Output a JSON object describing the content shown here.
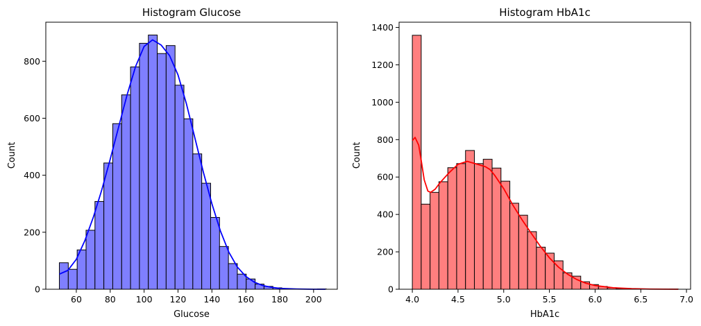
{
  "chart_data": [
    {
      "type": "bar",
      "title": "Histogram Glucose",
      "xlabel": "Glucose",
      "ylabel": "Count",
      "xlim": [
        42,
        214
      ],
      "ylim": [
        0,
        937
      ],
      "xticks": [
        60,
        80,
        100,
        120,
        140,
        160,
        180,
        200
      ],
      "xtick_labels": [
        "60",
        "80",
        "100",
        "120",
        "140",
        "160",
        "180",
        "200"
      ],
      "yticks": [
        0,
        200,
        400,
        600,
        800
      ],
      "ytick_labels": [
        "0",
        "200",
        "400",
        "600",
        "800"
      ],
      "bin_start": 50,
      "bin_width": 5.25,
      "values": [
        93,
        70,
        138,
        207,
        308,
        443,
        581,
        682,
        780,
        863,
        892,
        827,
        855,
        716,
        598,
        475,
        372,
        252,
        150,
        90,
        53,
        36,
        18,
        10,
        5,
        2,
        1,
        1,
        0,
        1
      ],
      "kde": [
        [
          50,
          53
        ],
        [
          55,
          66
        ],
        [
          60,
          105
        ],
        [
          65,
          170
        ],
        [
          70,
          252
        ],
        [
          75,
          348
        ],
        [
          80,
          456
        ],
        [
          85,
          570
        ],
        [
          90,
          683
        ],
        [
          95,
          782
        ],
        [
          100,
          852
        ],
        [
          105,
          875
        ],
        [
          110,
          857
        ],
        [
          115,
          820
        ],
        [
          120,
          752
        ],
        [
          125,
          650
        ],
        [
          130,
          530
        ],
        [
          135,
          410
        ],
        [
          140,
          300
        ],
        [
          145,
          205
        ],
        [
          150,
          130
        ],
        [
          155,
          78
        ],
        [
          160,
          45
        ],
        [
          165,
          25
        ],
        [
          170,
          13
        ],
        [
          175,
          7
        ],
        [
          180,
          3
        ],
        [
          190,
          1
        ],
        [
          200,
          0
        ],
        [
          207,
          0
        ]
      ],
      "colors": {
        "bar": "#7f7fff",
        "edge": "#000000",
        "kde": "#0000ff"
      },
      "grid": false
    },
    {
      "type": "bar",
      "title": "Histogram HbA1c",
      "xlabel": "HbA1c",
      "ylabel": "Count",
      "xlim": [
        3.855,
        7.045
      ],
      "ylim": [
        0,
        1428
      ],
      "xticks": [
        4.0,
        4.5,
        5.0,
        5.5,
        6.0,
        6.5,
        7.0
      ],
      "xtick_labels": [
        "4.0",
        "4.5",
        "5.0",
        "5.5",
        "6.0",
        "6.5",
        "7.0"
      ],
      "yticks": [
        0,
        200,
        400,
        600,
        800,
        1000,
        1200,
        1400
      ],
      "ytick_labels": [
        "0",
        "200",
        "400",
        "600",
        "800",
        "1000",
        "1200",
        "1400"
      ],
      "bin_start": 4.0,
      "bin_width": 0.097,
      "values": [
        1358,
        455,
        518,
        575,
        650,
        672,
        742,
        672,
        695,
        648,
        578,
        460,
        396,
        308,
        225,
        193,
        152,
        88,
        70,
        40,
        25,
        15,
        8,
        4,
        2,
        1,
        1,
        0,
        0,
        1
      ],
      "kde": [
        [
          4.0,
          795
        ],
        [
          4.03,
          812
        ],
        [
          4.07,
          770
        ],
        [
          4.1,
          680
        ],
        [
          4.13,
          585
        ],
        [
          4.17,
          525
        ],
        [
          4.2,
          518
        ],
        [
          4.25,
          535
        ],
        [
          4.3,
          568
        ],
        [
          4.4,
          622
        ],
        [
          4.5,
          668
        ],
        [
          4.6,
          684
        ],
        [
          4.7,
          670
        ],
        [
          4.8,
          655
        ],
        [
          4.85,
          640
        ],
        [
          4.9,
          610
        ],
        [
          5.0,
          538
        ],
        [
          5.1,
          450
        ],
        [
          5.2,
          372
        ],
        [
          5.3,
          300
        ],
        [
          5.4,
          230
        ],
        [
          5.5,
          168
        ],
        [
          5.6,
          118
        ],
        [
          5.7,
          80
        ],
        [
          5.8,
          52
        ],
        [
          5.9,
          32
        ],
        [
          6.0,
          20
        ],
        [
          6.2,
          8
        ],
        [
          6.4,
          3
        ],
        [
          6.6,
          1
        ],
        [
          6.91,
          0
        ]
      ],
      "colors": {
        "bar": "#ff7f7f",
        "edge": "#000000",
        "kde": "#ff0000"
      },
      "grid": false
    }
  ]
}
